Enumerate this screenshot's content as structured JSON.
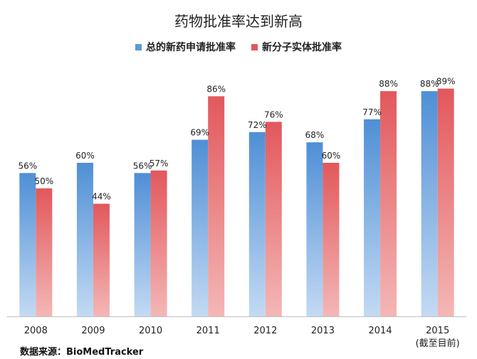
{
  "chart_data": {
    "type": "bar",
    "title": "药物批准率达到新高",
    "categories": [
      "2008",
      "2009",
      "2010",
      "2011",
      "2012",
      "2013",
      "2014",
      "2015"
    ],
    "category_note": "(截至目前)",
    "series": [
      {
        "name": "总的新药申请批准率",
        "values": [
          56,
          60,
          56,
          69,
          72,
          68,
          77,
          88
        ],
        "labels": [
          "56%",
          "60%",
          "56%",
          "69%",
          "72%",
          "68%",
          "77%",
          "88%"
        ],
        "color": "#5b9bd5"
      },
      {
        "name": "新分子实体批准率",
        "values": [
          50,
          44,
          57,
          86,
          76,
          60,
          88,
          89
        ],
        "labels": [
          "50%",
          "44%",
          "57%",
          "86%",
          "76%",
          "60%",
          "88%",
          "89%"
        ],
        "color": "#e15759"
      }
    ],
    "ylim": [
      0,
      100
    ],
    "grid": false,
    "legend_position": "top-center"
  },
  "source_note": "数据来源：BioMedTracker"
}
